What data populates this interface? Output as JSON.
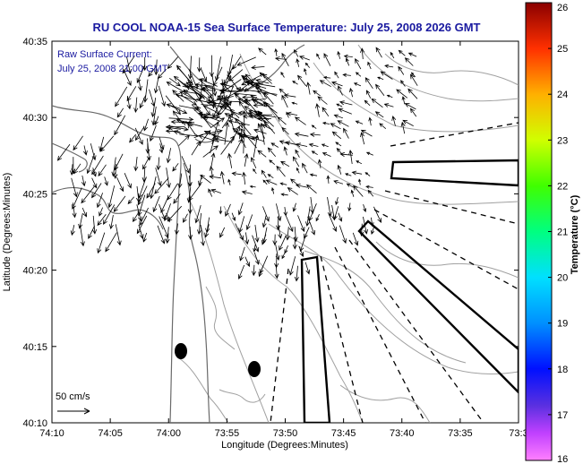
{
  "chart_data": {
    "type": "vector-field-map",
    "title": "RU COOL  NOAA-15  Sea Surface Temperature:  July 25, 2008 2026 GMT",
    "legend_lines": [
      "Raw Surface Current:",
      "July 25, 2008 21:00 GMT"
    ],
    "xlabel": "Longitude (Degrees:Minutes)",
    "ylabel": "Latitude (Degrees:Minutes)",
    "x_ticks": [
      "74:10",
      "74:05",
      "74:00",
      "73:55",
      "73:50",
      "73:45",
      "73:40",
      "73:35",
      "73:3"
    ],
    "y_ticks": [
      "40:35",
      "40:30",
      "40:25",
      "40:20",
      "40:15",
      "40:10"
    ],
    "xlim_minutes_west": [
      10,
      30
    ],
    "ylim_minutes_north": [
      10,
      35
    ],
    "scale_label": "50 cm/s",
    "colorbar": {
      "label": "Temperature (°C)",
      "ticks": [
        "26",
        "25",
        "24",
        "23",
        "22",
        "21",
        "20",
        "19",
        "18",
        "17",
        "16"
      ],
      "range": [
        16,
        26
      ]
    }
  },
  "colors": {
    "title": "#1a1aa0",
    "contour": "#9a9a9a",
    "coast": "#6a6a6a",
    "arrows": "#000000"
  }
}
